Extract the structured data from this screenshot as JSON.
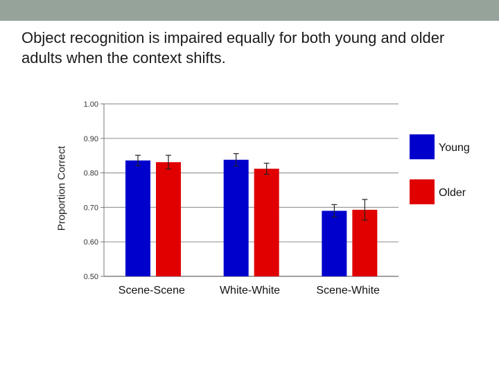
{
  "slide": {
    "title": "Object recognition is impaired equally for both young and older adults when the context shifts.",
    "top_band_color": "#95a39a"
  },
  "chart_data": {
    "type": "bar",
    "title": "",
    "xlabel": "",
    "ylabel": "Proportion Correct",
    "ylim": [
      0.5,
      1.0
    ],
    "yticks": [
      "1.00",
      "0.90",
      "0.80",
      "0.70",
      "0.60",
      "0.50"
    ],
    "grid": true,
    "legend_position": "right",
    "categories": [
      "Scene-Scene",
      "White-White",
      "Scene-White"
    ],
    "series": [
      {
        "name": "Young",
        "color": "#0000cc",
        "values": [
          0.836,
          0.838,
          0.69
        ],
        "errors": [
          0.015,
          0.018,
          0.018
        ]
      },
      {
        "name": "Older",
        "color": "#e00000",
        "values": [
          0.831,
          0.812,
          0.693
        ],
        "errors": [
          0.02,
          0.016,
          0.03
        ]
      }
    ]
  }
}
